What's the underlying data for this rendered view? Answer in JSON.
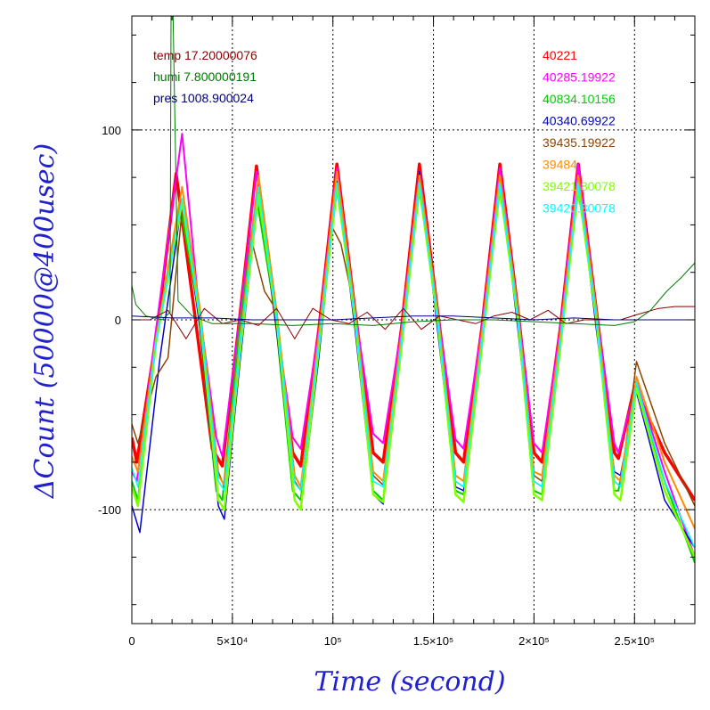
{
  "chart_data": {
    "type": "line",
    "title": "",
    "xlabel": "Time (second)",
    "ylabel": "ΔCount (50000@400usec)",
    "xlim": [
      0,
      280000
    ],
    "ylim": [
      -160,
      160
    ],
    "x_ticks": [
      {
        "value": 0,
        "label": "0"
      },
      {
        "value": 50000,
        "label": "5×10⁴"
      },
      {
        "value": 100000,
        "label": "10⁵"
      },
      {
        "value": 150000,
        "label": "1.5×10⁵"
      },
      {
        "value": 200000,
        "label": "2×10⁵"
      },
      {
        "value": 250000,
        "label": "2.5×10⁵"
      }
    ],
    "y_ticks": [
      {
        "value": 100,
        "label": "100"
      },
      {
        "value": 0,
        "label": "0"
      },
      {
        "value": -100,
        "label": "-100"
      }
    ],
    "grid": true,
    "legend_placement": "top-left and top-right",
    "env_legend": [
      {
        "label": "temp 17.20000076",
        "color": "#8b0000"
      },
      {
        "label": "humi 7.800000191",
        "color": "#007a00"
      },
      {
        "label": "pres 1008.900024",
        "color": "#00007a"
      }
    ],
    "series_legend": [
      {
        "label": "40221",
        "color": "#ff0000"
      },
      {
        "label": "40285.19922",
        "color": "#ff00ff"
      },
      {
        "label": "40834.10156",
        "color": "#00cc00"
      },
      {
        "label": "40340.69922",
        "color": "#0000cc"
      },
      {
        "label": "39435.19922",
        "color": "#8b4500"
      },
      {
        "label": "39484",
        "color": "#ff8c00"
      },
      {
        "label": "39421.80078",
        "color": "#7fff00"
      },
      {
        "label": "39420.80078",
        "color": "#00ffff"
      }
    ],
    "series": [
      {
        "name": "40221",
        "color": "#ff0000",
        "width": 3.5,
        "x": [
          0,
          2500,
          12000,
          22000,
          31000,
          40000,
          45000,
          53000,
          62000,
          71000,
          80000,
          84000,
          93000,
          102000,
          111000,
          120000,
          125000,
          134000,
          143000,
          152000,
          161000,
          165000,
          174000,
          183000,
          192000,
          200000,
          204000,
          213000,
          222000,
          231000,
          240000,
          242000,
          250000,
          265000,
          280000
        ],
        "y": [
          -62,
          -75,
          -10,
          77,
          5,
          -68,
          -77,
          -5,
          81,
          5,
          -70,
          -77,
          -5,
          82,
          5,
          -70,
          -75,
          -5,
          82,
          5,
          -70,
          -75,
          -5,
          82,
          5,
          -70,
          -75,
          -5,
          82,
          5,
          -70,
          -73,
          -35,
          -70,
          -95
        ]
      },
      {
        "name": "40285.19922",
        "color": "#ff00ff",
        "width": 2,
        "x": [
          0,
          2500,
          12000,
          25000,
          33000,
          42000,
          45000,
          53000,
          62000,
          71000,
          80000,
          84000,
          93000,
          102000,
          111000,
          120000,
          125000,
          134000,
          143000,
          152000,
          161000,
          165000,
          174000,
          183000,
          192000,
          200000,
          204000,
          213000,
          222000,
          231000,
          240000,
          242000,
          251000,
          265000,
          280000
        ],
        "y": [
          -80,
          -85,
          -5,
          98,
          10,
          -62,
          -72,
          -5,
          78,
          5,
          -62,
          -68,
          -5,
          80,
          5,
          -60,
          -65,
          -5,
          78,
          5,
          -63,
          -68,
          -5,
          80,
          5,
          -65,
          -70,
          -5,
          82,
          5,
          -65,
          -70,
          -33,
          -80,
          -125
        ]
      },
      {
        "name": "40834.10156",
        "color": "#00cc00",
        "width": 2,
        "x": [
          0,
          3000,
          12000,
          24000,
          33000,
          42000,
          45000,
          53000,
          62000,
          71000,
          80000,
          84000,
          93000,
          102000,
          111000,
          120000,
          125000,
          134000,
          143000,
          152000,
          161000,
          165000,
          174000,
          183000,
          192000,
          200000,
          204000,
          213000,
          222000,
          231000,
          240000,
          242000,
          251000,
          265000,
          280000
        ],
        "y": [
          -85,
          -95,
          -10,
          60,
          5,
          -90,
          -95,
          -10,
          65,
          5,
          -90,
          -95,
          -10,
          68,
          5,
          -90,
          -95,
          -10,
          68,
          5,
          -90,
          -92,
          -10,
          68,
          5,
          -90,
          -92,
          -10,
          68,
          5,
          -90,
          -90,
          -35,
          -85,
          -128
        ]
      },
      {
        "name": "40340.69922",
        "color": "#0000cc",
        "width": 1.5,
        "x": [
          0,
          4000,
          14000,
          25000,
          34000,
          43000,
          46000,
          54000,
          63000,
          72000,
          81000,
          84000,
          93000,
          102000,
          111000,
          120000,
          125000,
          134000,
          143000,
          152000,
          161000,
          165000,
          174000,
          183000,
          192000,
          200000,
          204000,
          213000,
          222000,
          231000,
          240000,
          243000,
          251000,
          265000,
          280000
        ],
        "y": [
          -98,
          -112,
          -20,
          63,
          -5,
          -98,
          -105,
          -20,
          68,
          -5,
          -95,
          -100,
          -20,
          73,
          -5,
          -92,
          -97,
          -15,
          78,
          -5,
          -88,
          -90,
          -15,
          76,
          -5,
          -85,
          -88,
          -15,
          75,
          -5,
          -80,
          -82,
          -38,
          -95,
          -120
        ]
      },
      {
        "name": "39435.19922",
        "color": "#8b4500",
        "width": 1.5,
        "x": [
          0,
          3000,
          12000,
          18000,
          25000,
          34000,
          43000,
          46000,
          52000,
          60000,
          66000,
          72000,
          81000,
          84000,
          90000,
          99000,
          104000,
          111000,
          120000,
          125000,
          134000,
          143000,
          152000,
          161000,
          165000,
          174000,
          183000,
          192000,
          200000,
          204000,
          213000,
          222000,
          231000,
          240000,
          243000,
          251000,
          265000,
          280000
        ],
        "y": [
          -55,
          -65,
          -30,
          -20,
          58,
          5,
          -80,
          -88,
          -30,
          40,
          15,
          5,
          -85,
          -90,
          -40,
          50,
          40,
          5,
          -82,
          -87,
          -15,
          72,
          5,
          -85,
          -88,
          -15,
          74,
          5,
          -82,
          -85,
          -15,
          75,
          5,
          -85,
          -88,
          -22,
          -65,
          -98
        ]
      },
      {
        "name": "39484",
        "color": "#ff8c00",
        "width": 2,
        "x": [
          0,
          3000,
          12000,
          25000,
          34000,
          43000,
          46000,
          54000,
          63000,
          72000,
          81000,
          84000,
          93000,
          102000,
          111000,
          120000,
          125000,
          134000,
          143000,
          152000,
          161000,
          165000,
          174000,
          183000,
          192000,
          200000,
          204000,
          213000,
          222000,
          231000,
          240000,
          243000,
          251000,
          265000,
          280000
        ],
        "y": [
          -72,
          -80,
          -10,
          70,
          5,
          -82,
          -87,
          -10,
          76,
          5,
          -82,
          -88,
          -8,
          78,
          5,
          -80,
          -85,
          -8,
          76,
          5,
          -82,
          -85,
          -8,
          76,
          5,
          -80,
          -82,
          -8,
          76,
          5,
          -82,
          -85,
          -30,
          -75,
          -110
        ]
      },
      {
        "name": "39421.80078",
        "color": "#7fff00",
        "width": 2.5,
        "x": [
          0,
          3000,
          12000,
          25000,
          34000,
          43000,
          46000,
          54000,
          63000,
          72000,
          81000,
          84000,
          93000,
          102000,
          111000,
          120000,
          125000,
          134000,
          143000,
          152000,
          161000,
          165000,
          174000,
          183000,
          192000,
          200000,
          204000,
          213000,
          222000,
          231000,
          240000,
          243000,
          251000,
          265000,
          280000
        ],
        "y": [
          -88,
          -98,
          -12,
          62,
          0,
          -95,
          -100,
          -15,
          66,
          0,
          -95,
          -100,
          -15,
          70,
          0,
          -92,
          -96,
          -15,
          70,
          0,
          -92,
          -96,
          -15,
          70,
          0,
          -92,
          -95,
          -15,
          70,
          0,
          -92,
          -95,
          -36,
          -90,
          -125
        ]
      },
      {
        "name": "39420.80078",
        "color": "#00ffff",
        "width": 1.5,
        "x": [
          0,
          3000,
          12000,
          25000,
          34000,
          43000,
          46000,
          54000,
          63000,
          72000,
          81000,
          84000,
          93000,
          102000,
          111000,
          120000,
          125000,
          134000,
          143000,
          152000,
          161000,
          165000,
          174000,
          183000,
          192000,
          200000,
          204000,
          213000,
          222000,
          231000,
          240000,
          243000,
          251000,
          265000,
          280000
        ],
        "y": [
          -78,
          -88,
          -12,
          64,
          2,
          -85,
          -90,
          -12,
          70,
          2,
          -86,
          -90,
          -12,
          72,
          2,
          -85,
          -88,
          -12,
          72,
          2,
          -85,
          -88,
          -12,
          72,
          2,
          -85,
          -88,
          -12,
          72,
          2,
          -85,
          -88,
          -33,
          -85,
          -120
        ]
      },
      {
        "name": "temp 17.20000076",
        "color": "#8b0000",
        "width": 1,
        "x": [
          0,
          9000,
          18000,
          27000,
          36000,
          45000,
          54000,
          63000,
          72000,
          81000,
          90000,
          99000,
          108000,
          117000,
          126000,
          135000,
          144000,
          153000,
          162000,
          171000,
          180000,
          189000,
          198000,
          207000,
          216000,
          225000,
          234000,
          243000,
          252000,
          262000,
          270000,
          280000
        ],
        "y": [
          0,
          0,
          5,
          -10,
          6,
          -2,
          0,
          -3,
          6,
          -10,
          6,
          0,
          -2,
          4,
          -5,
          6,
          -5,
          2,
          0,
          -2,
          2,
          4,
          0,
          5,
          -2,
          0,
          0,
          0,
          3,
          6,
          7,
          7
        ]
      },
      {
        "name": "humi 7.800000191",
        "color": "#007a00",
        "width": 1,
        "x": [
          0,
          2000,
          7000,
          15000,
          19000,
          19500,
          20500,
          23000,
          30000,
          40000,
          60000,
          80000,
          100000,
          120000,
          140000,
          160000,
          180000,
          200000,
          220000,
          240000,
          250000,
          258000,
          266000,
          273000,
          280000
        ],
        "y": [
          18,
          8,
          2,
          0,
          4,
          160,
          160,
          10,
          2,
          -2,
          -2,
          -3,
          -2,
          -3,
          -1,
          0,
          0,
          -1,
          -2,
          -3,
          -1,
          5,
          15,
          22,
          30
        ]
      },
      {
        "name": "pres 1008.900024",
        "color": "#00007a",
        "width": 1,
        "x": [
          0,
          20000,
          40000,
          60000,
          80000,
          100000,
          120000,
          140000,
          160000,
          180000,
          200000,
          220000,
          240000,
          260000,
          280000
        ],
        "y": [
          2,
          1,
          1,
          0,
          0,
          0,
          1,
          2,
          2,
          1,
          0,
          1,
          0,
          0,
          0
        ]
      }
    ]
  }
}
